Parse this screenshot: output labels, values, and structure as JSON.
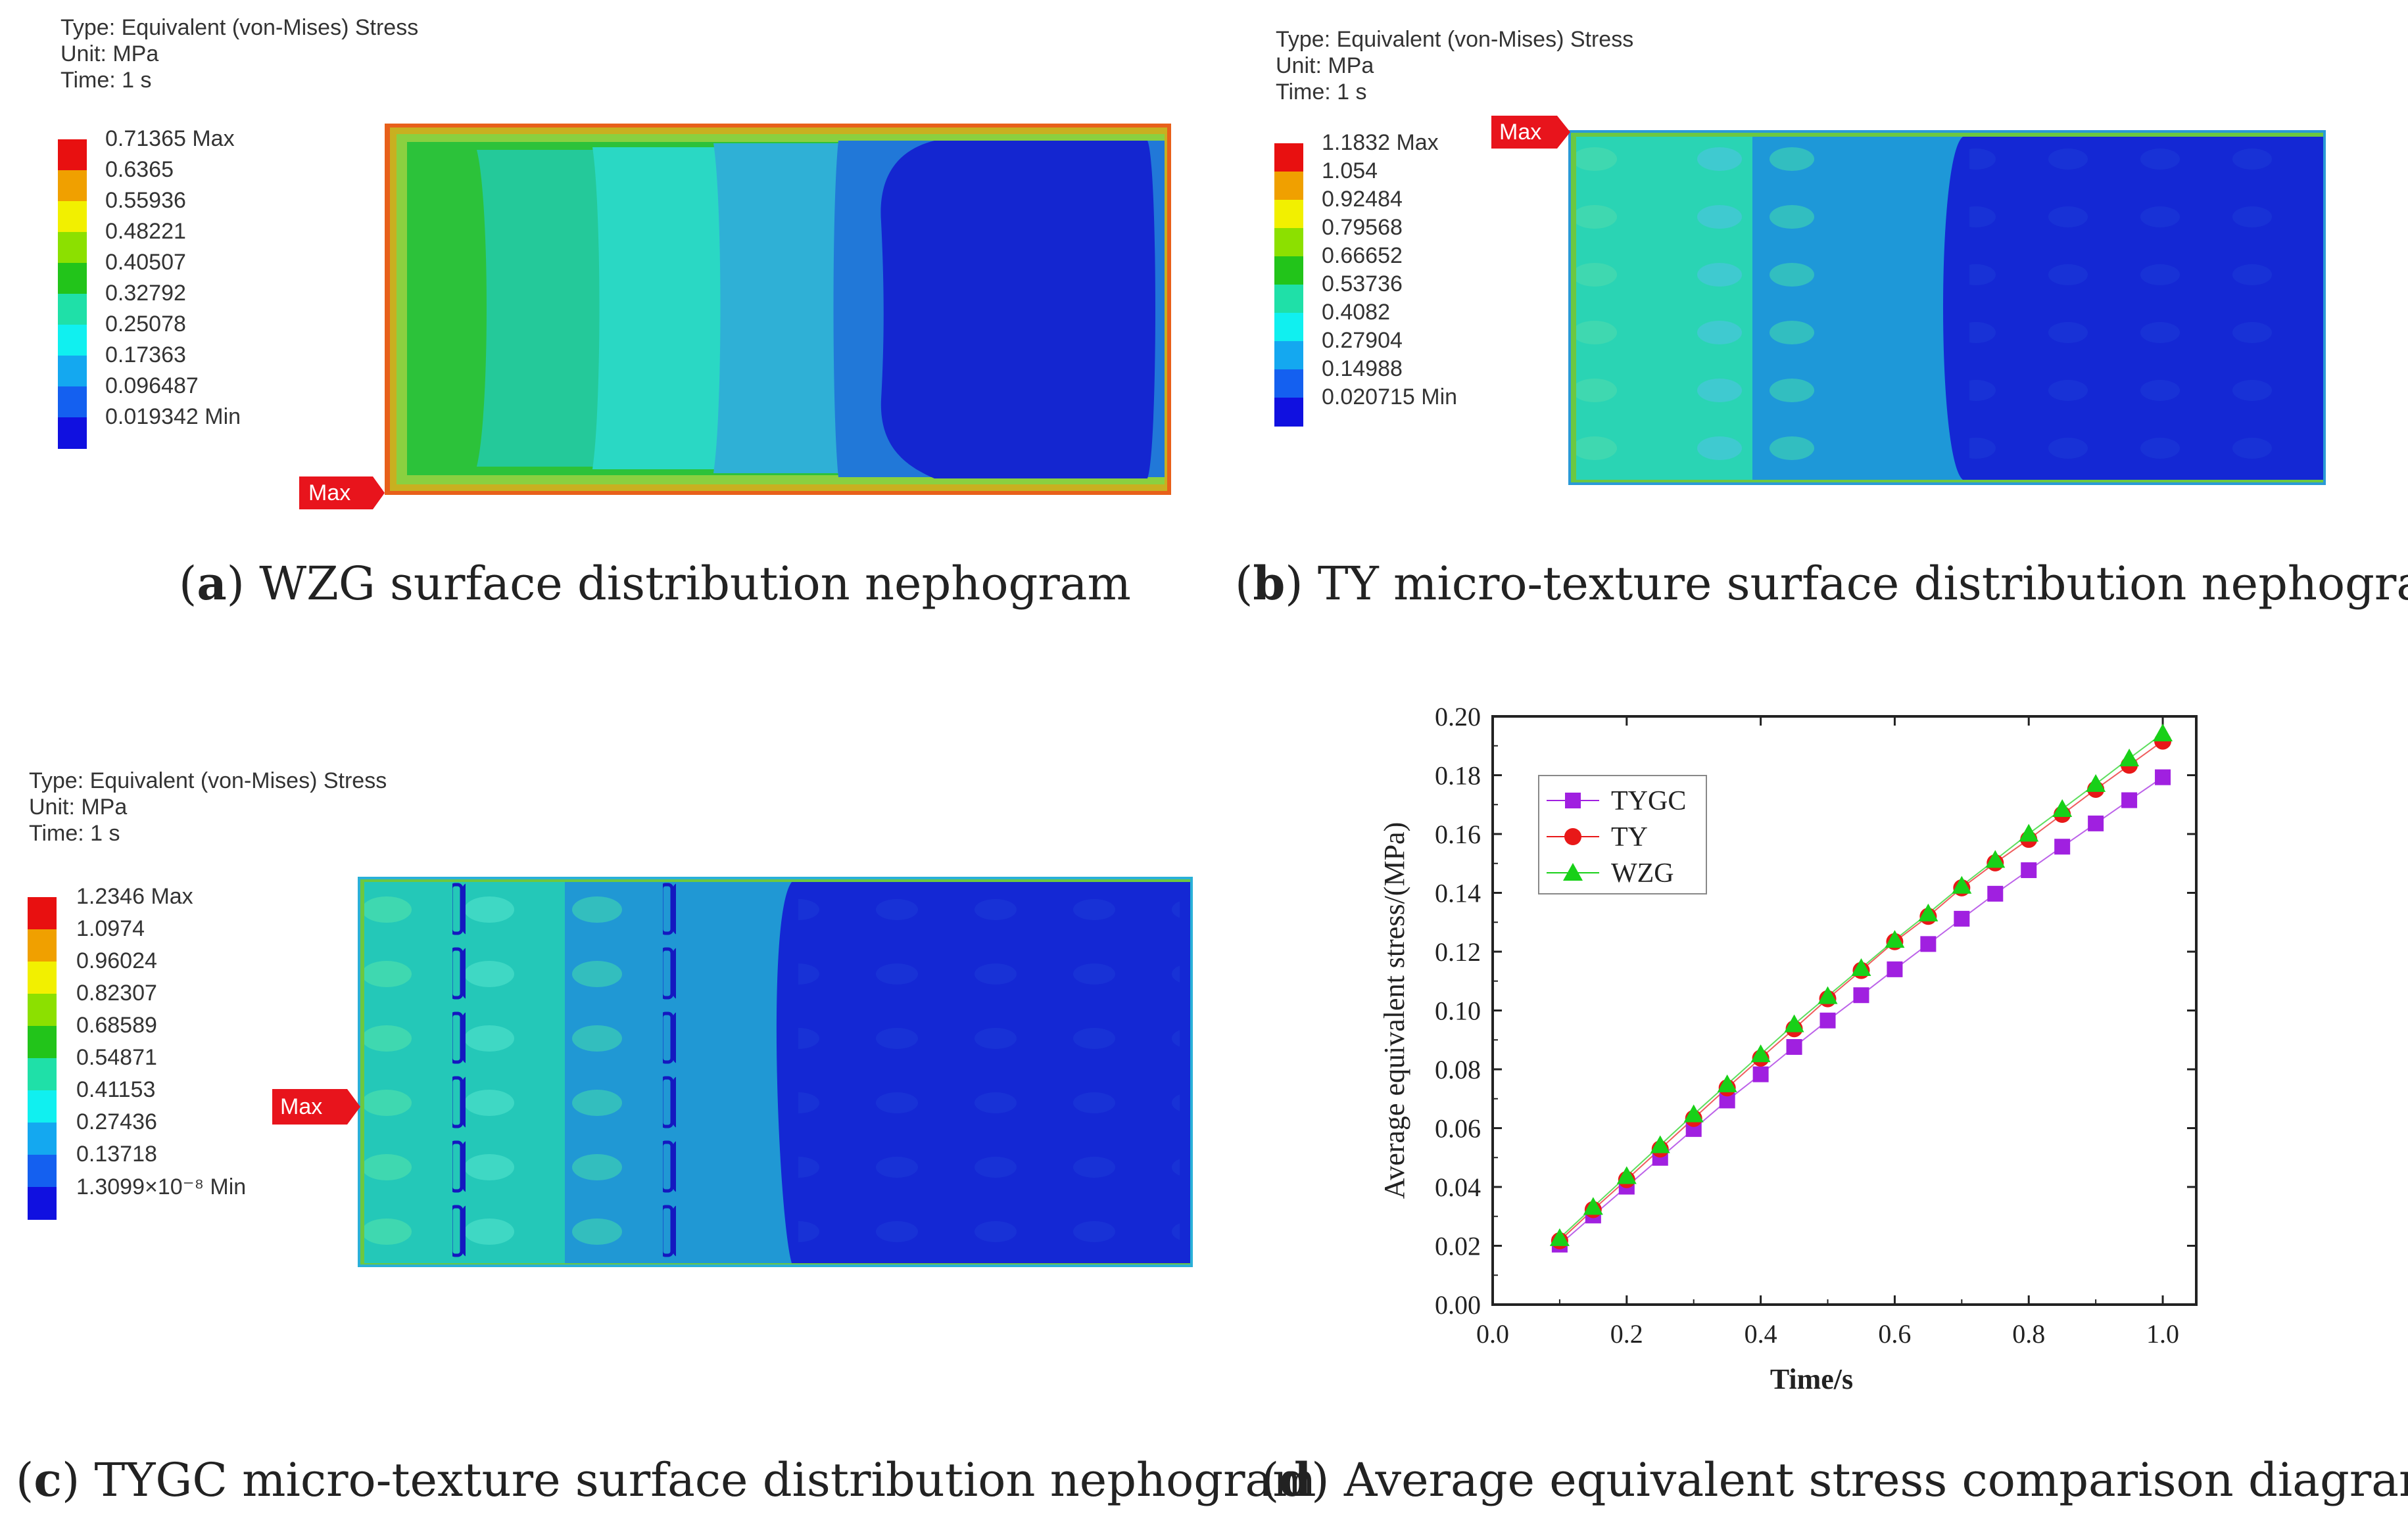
{
  "panels": {
    "a": {
      "info": [
        "Type: Equivalent (von-Mises) Stress",
        "Unit: MPa",
        "Time: 1 s"
      ],
      "legend": [
        "0.71365 Max",
        "0.6365",
        "0.55936",
        "0.48221",
        "0.40507",
        "0.32792",
        "0.25078",
        "0.17363",
        "0.096487",
        "0.019342 Min"
      ],
      "max_label": "Max",
      "caption_letter": "a",
      "caption_text": "WZG surface distribution nephogram"
    },
    "b": {
      "info": [
        "Type: Equivalent (von-Mises) Stress",
        "Unit: MPa",
        "Time: 1 s"
      ],
      "legend": [
        "1.1832 Max",
        "1.054",
        "0.92484",
        "0.79568",
        "0.66652",
        "0.53736",
        "0.4082",
        "0.27904",
        "0.14988",
        "0.020715 Min"
      ],
      "max_label": "Max",
      "caption_letter": "b",
      "caption_text": "TY micro-texture surface distribution nephogram"
    },
    "c": {
      "info": [
        "Type: Equivalent (von-Mises) Stress",
        "Unit: MPa",
        "Time: 1 s"
      ],
      "legend": [
        "1.2346 Max",
        "1.0974",
        "0.96024",
        "0.82307",
        "0.68589",
        "0.54871",
        "0.41153",
        "0.27436",
        "0.13718",
        "1.3099×10⁻⁸ Min"
      ],
      "max_label": "Max",
      "caption_letter": "c",
      "caption_text": "TYGC micro-texture surface distribution nephogram"
    },
    "d": {
      "caption_letter": "d",
      "caption_text": "Average equivalent stress comparison diagram"
    }
  },
  "legend_colors": [
    "#e81010",
    "#f0a000",
    "#f2f000",
    "#8ce000",
    "#22c41a",
    "#1fe0a8",
    "#10f0f0",
    "#14a8f0",
    "#1460f0",
    "#1010e0"
  ],
  "chart_data": {
    "type": "line",
    "xlabel": "Time/s",
    "ylabel": "Average equivalent stress/(MPa)",
    "xlim": [
      0.0,
      1.05
    ],
    "ylim": [
      0.0,
      0.2
    ],
    "xticks": [
      "0.0",
      "0.2",
      "0.4",
      "0.6",
      "0.8",
      "1.0"
    ],
    "xtick_values": [
      0.0,
      0.2,
      0.4,
      0.6,
      0.8,
      1.0
    ],
    "yticks": [
      "0.00",
      "0.02",
      "0.04",
      "0.06",
      "0.08",
      "0.10",
      "0.12",
      "0.14",
      "0.16",
      "0.18",
      "0.20"
    ],
    "ytick_values": [
      0.0,
      0.02,
      0.04,
      0.06,
      0.08,
      0.1,
      0.12,
      0.14,
      0.16,
      0.18,
      0.2
    ],
    "legend_position": "top-left",
    "x": [
      0.1,
      0.15,
      0.2,
      0.25,
      0.3,
      0.35,
      0.4,
      0.45,
      0.5,
      0.55,
      0.6,
      0.65,
      0.7,
      0.75,
      0.8,
      0.85,
      0.9,
      0.95,
      1.0
    ],
    "series": [
      {
        "name": "TYGC",
        "color": "#a020e0",
        "marker": "square",
        "values": [
          0.0204,
          0.0303,
          0.0401,
          0.0499,
          0.0597,
          0.0694,
          0.0783,
          0.0876,
          0.0966,
          0.1052,
          0.114,
          0.1226,
          0.1312,
          0.1397,
          0.1477,
          0.1557,
          0.1636,
          0.1715,
          0.1793
        ]
      },
      {
        "name": "TY",
        "color": "#e81818",
        "marker": "circle",
        "values": [
          0.0217,
          0.0323,
          0.0425,
          0.0529,
          0.0633,
          0.0737,
          0.0838,
          0.0938,
          0.104,
          0.1136,
          0.1234,
          0.132,
          0.1417,
          0.1502,
          0.1582,
          0.1667,
          0.1752,
          0.1834,
          0.1916
        ]
      },
      {
        "name": "WZG",
        "color": "#18d018",
        "marker": "triangle",
        "values": [
          0.0226,
          0.0332,
          0.0437,
          0.0542,
          0.0647,
          0.0749,
          0.0851,
          0.0953,
          0.1049,
          0.1144,
          0.124,
          0.133,
          0.1424,
          0.1512,
          0.1601,
          0.1685,
          0.177,
          0.1857,
          0.1942
        ]
      }
    ]
  }
}
